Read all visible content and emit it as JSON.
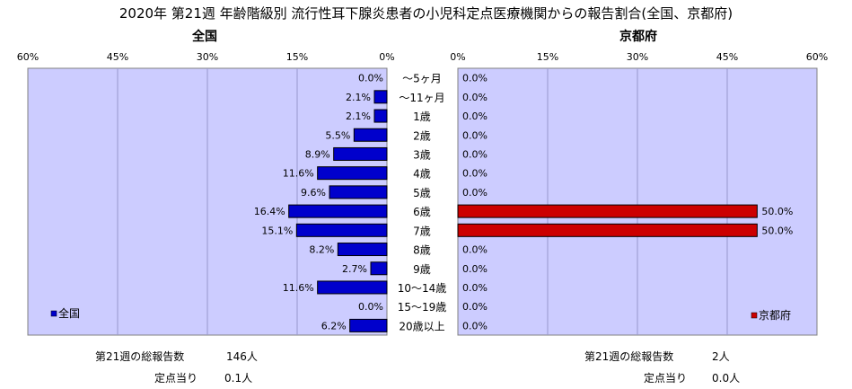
{
  "title": "2020年 第21週 年齢階級別 流行性耳下腺炎患者の小児科定点医療機関からの報告割合(全国、京都府)",
  "chart_data": {
    "type": "bar",
    "categories": [
      "～5ヶ月",
      "～11ヶ月",
      "1歳",
      "2歳",
      "3歳",
      "4歳",
      "5歳",
      "6歳",
      "7歳",
      "8歳",
      "9歳",
      "10～14歳",
      "15～19歳",
      "20歳以上"
    ],
    "xlim": [
      0,
      60
    ],
    "ticks": [
      "0%",
      "15%",
      "30%",
      "45%",
      "60%"
    ],
    "grid": "vertical",
    "plot_bg": "#ccccff",
    "series": [
      {
        "name": "全国",
        "panel_title": "全国",
        "side": "left",
        "color": "#0000cc",
        "legend_position": "bottom-left",
        "values": [
          0.0,
          2.1,
          2.1,
          5.5,
          8.9,
          11.6,
          9.6,
          16.4,
          15.1,
          8.2,
          2.7,
          11.6,
          0.0,
          6.2
        ],
        "labels": [
          "0.0%",
          "2.1%",
          "2.1%",
          "5.5%",
          "8.9%",
          "11.6%",
          "9.6%",
          "16.4%",
          "15.1%",
          "8.2%",
          "2.7%",
          "11.6%",
          "0.0%",
          "6.2%"
        ]
      },
      {
        "name": "京都府",
        "panel_title": "京都府",
        "side": "right",
        "color": "#cc0000",
        "legend_position": "bottom-right",
        "values": [
          0.0,
          0.0,
          0.0,
          0.0,
          0.0,
          0.0,
          0.0,
          50.0,
          50.0,
          0.0,
          0.0,
          0.0,
          0.0,
          0.0
        ],
        "labels": [
          "0.0%",
          "0.0%",
          "0.0%",
          "0.0%",
          "0.0%",
          "0.0%",
          "0.0%",
          "50.0%",
          "50.0%",
          "0.0%",
          "0.0%",
          "0.0%",
          "0.0%",
          "0.0%"
        ]
      }
    ]
  },
  "footer": {
    "national": {
      "total_label": "第21週の総報告数",
      "total_value": "146人",
      "per_site_label": "定点当り",
      "per_site_value": "0.1人"
    },
    "kyoto": {
      "total_label": "第21週の総報告数",
      "total_value": "2人",
      "per_site_label": "定点当り",
      "per_site_value": "0.0人"
    }
  }
}
